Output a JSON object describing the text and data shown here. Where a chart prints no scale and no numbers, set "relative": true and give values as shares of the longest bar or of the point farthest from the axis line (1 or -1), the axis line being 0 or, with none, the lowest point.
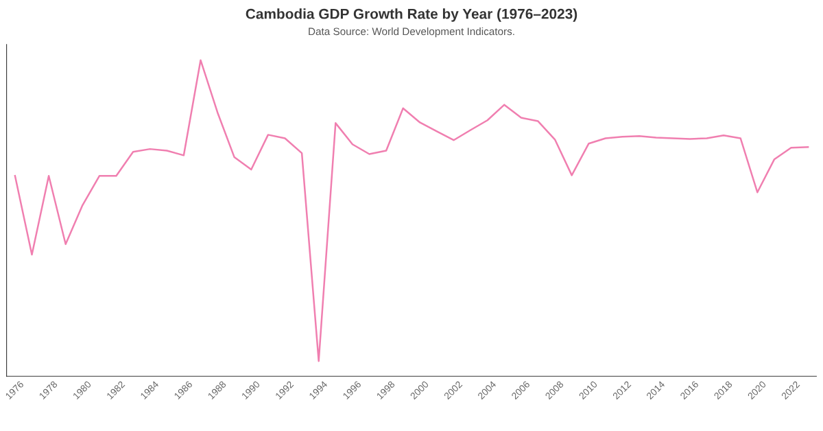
{
  "chart_data": {
    "type": "line",
    "title": "Cambodia GDP Growth Rate by Year (1976–2023)",
    "subtitle": "Data Source: World Development Indicators.",
    "relative": true,
    "grid": false,
    "legend": false,
    "marker": "none",
    "line_style": "solid",
    "x": [
      1976,
      1977,
      1978,
      1979,
      1980,
      1981,
      1982,
      1983,
      1984,
      1985,
      1986,
      1987,
      1988,
      1989,
      1990,
      1991,
      1992,
      1993,
      1994,
      1995,
      1996,
      1997,
      1998,
      1999,
      2000,
      2001,
      2002,
      2003,
      2004,
      2005,
      2006,
      2007,
      2008,
      2009,
      2010,
      2011,
      2012,
      2013,
      2014,
      2015,
      2016,
      2017,
      2018,
      2019,
      2020,
      2021,
      2022,
      2023
    ],
    "xlim": [
      1975.5,
      2023.5
    ],
    "xticks": [
      1976,
      1978,
      1980,
      1982,
      1984,
      1986,
      1988,
      1990,
      1992,
      1994,
      1996,
      1998,
      2000,
      2002,
      2004,
      2006,
      2008,
      2010,
      2012,
      2014,
      2016,
      2018,
      2020,
      2022
    ],
    "series": [
      {
        "color": "#f07fb0",
        "values": [
          0.634,
          0.385,
          0.634,
          0.418,
          0.541,
          0.634,
          0.634,
          0.71,
          0.719,
          0.714,
          0.699,
          1,
          0.835,
          0.693,
          0.654,
          0.764,
          0.753,
          0.706,
          0.048,
          0.801,
          0.734,
          0.703,
          0.714,
          0.848,
          0.803,
          0.775,
          0.747,
          0.779,
          0.81,
          0.859,
          0.818,
          0.807,
          0.749,
          0.636,
          0.736,
          0.753,
          0.758,
          0.76,
          0.755,
          0.753,
          0.751,
          0.753,
          0.762,
          0.753,
          0.582,
          0.686,
          0.723,
          0.725
        ]
      }
    ]
  }
}
